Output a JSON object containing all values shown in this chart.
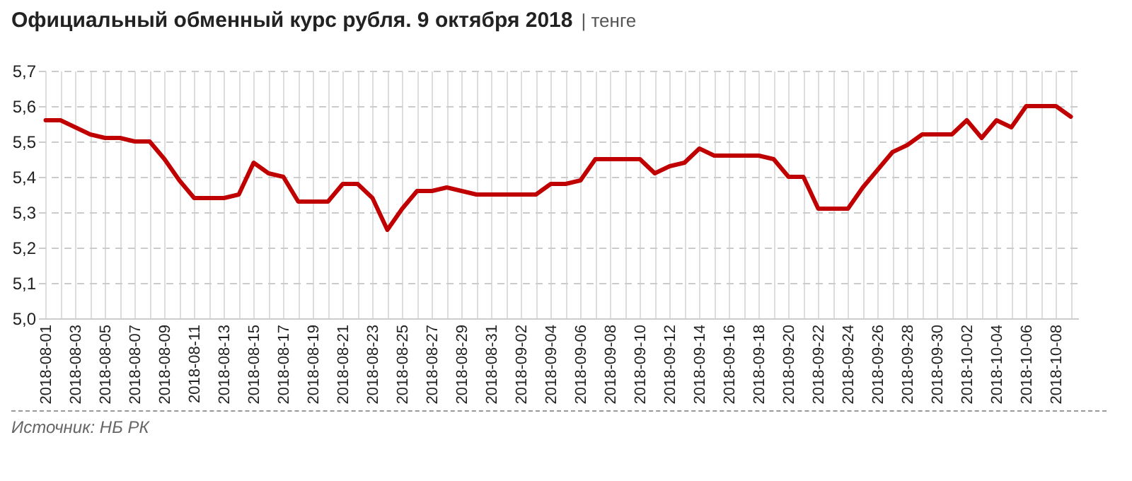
{
  "chart_data": {
    "type": "line",
    "title": "Официальный обменный курс рубля. 9 октября 2018",
    "subtitle": "| тенге",
    "categories": [
      "2018-08-01",
      null,
      "2018-08-03",
      null,
      "2018-08-05",
      null,
      "2018-08-07",
      null,
      "2018-08-09",
      null,
      "2018-08-11",
      null,
      "2018-08-13",
      null,
      "2018-08-15",
      null,
      "2018-08-17",
      null,
      "2018-08-19",
      null,
      "2018-08-21",
      null,
      "2018-08-23",
      null,
      "2018-08-25",
      null,
      "2018-08-27",
      null,
      "2018-08-29",
      null,
      "2018-08-31",
      null,
      "2018-09-02",
      null,
      "2018-09-04",
      null,
      "2018-09-06",
      null,
      "2018-09-08",
      null,
      "2018-09-10",
      null,
      "2018-09-12",
      null,
      "2018-09-14",
      null,
      "2018-09-16",
      null,
      "2018-09-18",
      null,
      "2018-09-20",
      null,
      "2018-09-22",
      null,
      "2018-09-24",
      null,
      "2018-09-26",
      null,
      "2018-09-28",
      null,
      "2018-09-30",
      null,
      "2018-10-02",
      null,
      "2018-10-04",
      null,
      "2018-10-06",
      null,
      "2018-10-08",
      null
    ],
    "series": [
      {
        "color": "#c00000",
        "values": [
          5.56,
          5.56,
          5.54,
          5.52,
          5.51,
          5.51,
          5.5,
          5.5,
          5.45,
          5.39,
          5.34,
          5.34,
          5.34,
          5.35,
          5.44,
          5.41,
          5.4,
          5.33,
          5.33,
          5.33,
          5.38,
          5.38,
          5.34,
          5.25,
          5.31,
          5.36,
          5.36,
          5.37,
          5.36,
          5.35,
          5.35,
          5.35,
          5.35,
          5.35,
          5.38,
          5.38,
          5.39,
          5.45,
          5.45,
          5.45,
          5.45,
          5.41,
          5.43,
          5.44,
          5.48,
          5.46,
          5.46,
          5.46,
          5.46,
          5.45,
          5.4,
          5.4,
          5.31,
          5.31,
          5.31,
          5.37,
          5.42,
          5.47,
          5.49,
          5.52,
          5.52,
          5.52,
          5.56,
          5.51,
          5.56,
          5.54,
          5.6,
          5.6,
          5.6,
          5.57
        ]
      }
    ],
    "ylim": [
      5.0,
      5.7
    ],
    "yticks": [
      {
        "value": 5.0,
        "label": "5,0"
      },
      {
        "value": 5.1,
        "label": "5,1"
      },
      {
        "value": 5.2,
        "label": "5,2"
      },
      {
        "value": 5.3,
        "label": "5,3"
      },
      {
        "value": 5.4,
        "label": "5,4"
      },
      {
        "value": 5.5,
        "label": "5,5"
      },
      {
        "value": 5.6,
        "label": "5,6"
      },
      {
        "value": 5.7,
        "label": "5,7"
      }
    ],
    "grid": true,
    "marker": "none",
    "line_style": "solid",
    "annotations": [
      "Источник: НБ РК"
    ]
  }
}
